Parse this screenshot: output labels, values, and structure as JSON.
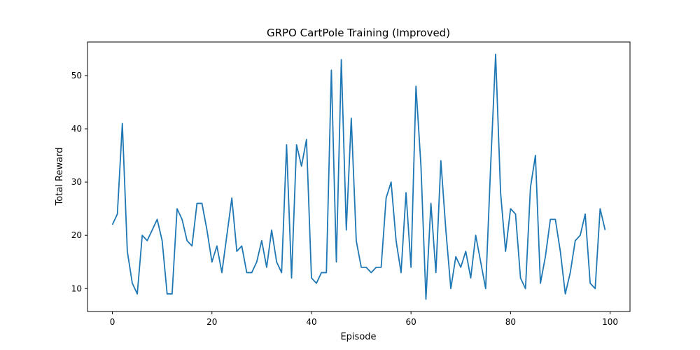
{
  "chart_data": {
    "type": "line",
    "title": "GRPO CartPole Training (Improved)",
    "xlabel": "Episode",
    "ylabel": "Total Reward",
    "xlim": [
      -5,
      104
    ],
    "ylim": [
      5.7,
      56.3
    ],
    "xticks": [
      0,
      20,
      40,
      60,
      80,
      100
    ],
    "yticks": [
      10,
      20,
      30,
      40,
      50
    ],
    "grid": false,
    "line_color": "#1f77b4",
    "series": [
      {
        "x": [
          0,
          1,
          2,
          3,
          4,
          5,
          6,
          7,
          8,
          9,
          10,
          11,
          12,
          13,
          14,
          15,
          16,
          17,
          18,
          19,
          20,
          21,
          22,
          23,
          24,
          25,
          26,
          27,
          28,
          29,
          30,
          31,
          32,
          33,
          34,
          35,
          36,
          37,
          38,
          39,
          40,
          41,
          42,
          43,
          44,
          45,
          46,
          47,
          48,
          49,
          50,
          51,
          52,
          53,
          54,
          55,
          56,
          57,
          58,
          59,
          60,
          61,
          62,
          63,
          64,
          65,
          66,
          67,
          68,
          69,
          70,
          71,
          72,
          73,
          74,
          75,
          76,
          77,
          78,
          79,
          80,
          81,
          82,
          83,
          84,
          85,
          86,
          87,
          88,
          89,
          90,
          91,
          92,
          93,
          94,
          95,
          96,
          97,
          98,
          99
        ],
        "values": [
          22,
          24,
          41,
          17,
          11,
          9,
          20,
          19,
          21,
          23,
          19,
          9,
          9,
          25,
          23,
          19,
          18,
          26,
          26,
          21,
          15,
          18,
          13,
          20,
          27,
          17,
          18,
          13,
          13,
          15,
          19,
          14,
          21,
          15,
          13,
          37,
          12,
          37,
          33,
          38,
          12,
          11,
          13,
          13,
          51,
          15,
          53,
          21,
          42,
          19,
          14,
          14,
          13,
          14,
          14,
          27,
          30,
          19,
          13,
          28,
          14,
          48,
          33,
          8,
          26,
          13,
          34,
          21,
          10,
          16,
          14,
          17,
          12,
          20,
          15,
          10,
          33,
          54,
          28,
          17,
          25,
          24,
          12,
          10,
          29,
          35,
          11,
          16,
          23,
          23,
          17,
          9,
          13,
          19,
          20,
          24,
          11,
          10,
          25,
          21
        ]
      }
    ]
  }
}
